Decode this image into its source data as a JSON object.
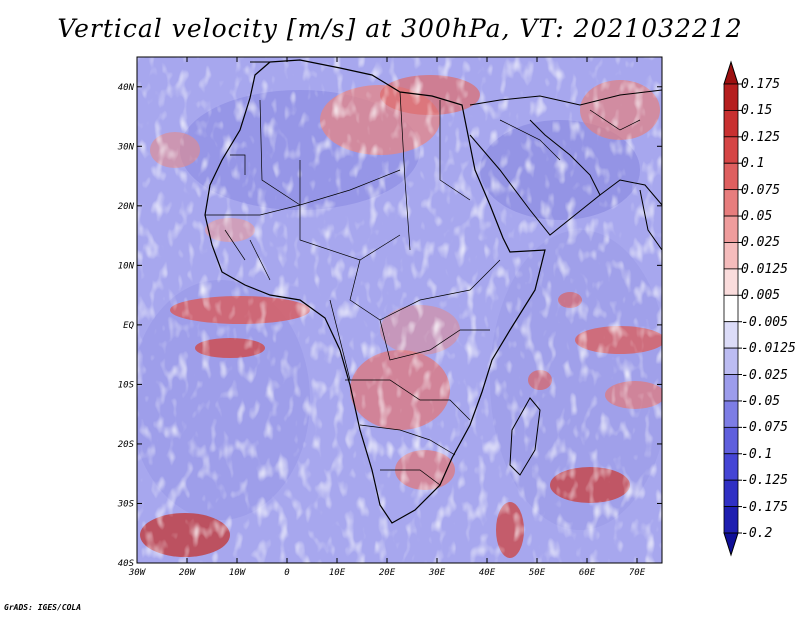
{
  "title": "Vertical velocity [m/s] at 300hPa, VT: 2021032212",
  "credit": "GrADS: IGES/COLA",
  "map": {
    "lon_range": [
      -30,
      75
    ],
    "lat_range": [
      -40,
      45
    ],
    "x_ticks": [
      "30W",
      "20W",
      "10W",
      "0",
      "10E",
      "20E",
      "30E",
      "40E",
      "50E",
      "60E",
      "70E"
    ],
    "y_ticks": [
      "40N",
      "30N",
      "20N",
      "10N",
      "EQ",
      "10S",
      "20S",
      "30S",
      "40S"
    ]
  },
  "colorbar": {
    "labels": [
      "0.175",
      "0.15",
      "0.125",
      "0.1",
      "0.075",
      "0.05",
      "0.025",
      "0.0125",
      "0.005",
      "-0.005",
      "-0.0125",
      "-0.025",
      "-0.05",
      "-0.075",
      "-0.1",
      "-0.125",
      "-0.175",
      "-0.2"
    ],
    "colors": [
      "#9c1010",
      "#b51e1e",
      "#c83030",
      "#d54545",
      "#de5f5f",
      "#e77d7d",
      "#ef9c9c",
      "#f5bcbc",
      "#fadcdc",
      "#ffffff",
      "#dcdcf8",
      "#bcbcf2",
      "#9c9cec",
      "#7d7de5",
      "#5f5fdd",
      "#4545d5",
      "#3030c4",
      "#1e1eb0",
      "#0f0f98"
    ]
  }
}
